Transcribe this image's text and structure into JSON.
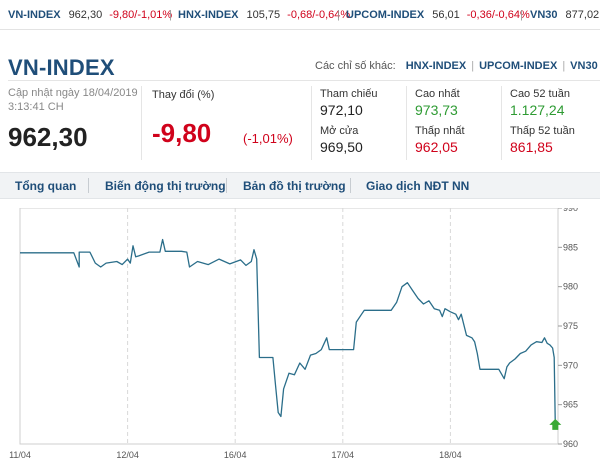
{
  "ticker": [
    {
      "name": "VN-INDEX",
      "value": "962,30",
      "change": "-9,80/-1,01%"
    },
    {
      "name": "HNX-INDEX",
      "value": "105,75",
      "change": "-0,68/-0,64%"
    },
    {
      "name": "UPCOM-INDEX",
      "value": "56,01",
      "change": "-0,36/-0,64%"
    },
    {
      "name": "VN30",
      "value": "877,02",
      "change": ""
    }
  ],
  "header": {
    "title": "VN-INDEX",
    "other_label": "Các chỉ số khác:",
    "other_links": [
      "HNX-INDEX",
      "UPCOM-INDEX",
      "VN30"
    ]
  },
  "summary": {
    "updated_label": "Cập nhật ngày 18/04/2019",
    "updated_time": "3:13:41 CH",
    "price": "962,30",
    "change_label": "Thay đổi (%)",
    "change_value": "-9,80",
    "change_pct": "(-1,01%)"
  },
  "stats": {
    "ref_label": "Tham chiếu",
    "ref_value": "972,10",
    "high_label": "Cao nhất",
    "high_value": "973,73",
    "high52_label": "Cao 52 tuần",
    "high52_value": "1.127,24",
    "open_label": "Mở cửa",
    "open_value": "969,50",
    "low_label": "Thấp nhất",
    "low_value": "962,05",
    "low52_label": "Thấp 52 tuần",
    "low52_value": "861,85"
  },
  "tabs": [
    "Tổng quan",
    "Biến động thị trường",
    "Bản đồ thị trường",
    "Giao dịch NĐT NN"
  ],
  "colors": {
    "brand": "#1f4e79",
    "down": "#d0021b",
    "up": "#2e9b33",
    "line": "#2b6e8a",
    "arrow": "#3aa935"
  },
  "chart_data": {
    "type": "line",
    "x_ticks": [
      "11/04",
      "12/04",
      "16/04",
      "17/04",
      "18/04"
    ],
    "y_ticks": [
      960,
      965,
      970,
      975,
      980,
      985,
      990
    ],
    "ylim": [
      960,
      990
    ],
    "grid": true,
    "series": [
      {
        "values": [
          [
            0.0,
            984.3
          ],
          [
            0.1,
            984.3
          ],
          [
            0.11,
            982.5
          ],
          [
            0.11,
            984.4
          ],
          [
            0.13,
            984.4
          ],
          [
            0.14,
            983.0
          ],
          [
            0.15,
            982.5
          ],
          [
            0.16,
            983.0
          ],
          [
            0.18,
            983.2
          ],
          [
            0.19,
            982.8
          ],
          [
            0.2,
            983.5
          ],
          [
            0.205,
            983.0
          ],
          [
            0.21,
            985.2
          ],
          [
            0.215,
            983.8
          ],
          [
            0.22,
            983.9
          ],
          [
            0.24,
            984.4
          ],
          [
            0.26,
            984.4
          ],
          [
            0.265,
            986.0
          ],
          [
            0.27,
            984.5
          ],
          [
            0.3,
            984.5
          ],
          [
            0.31,
            984.4
          ],
          [
            0.315,
            982.5
          ],
          [
            0.33,
            983.2
          ],
          [
            0.35,
            982.8
          ],
          [
            0.37,
            983.5
          ],
          [
            0.39,
            982.9
          ],
          [
            0.41,
            983.4
          ],
          [
            0.42,
            982.7
          ],
          [
            0.43,
            983.2
          ],
          [
            0.435,
            984.7
          ],
          [
            0.44,
            983.5
          ],
          [
            0.445,
            971.0
          ],
          [
            0.46,
            971.0
          ],
          [
            0.47,
            971.0
          ],
          [
            0.475,
            967.5
          ],
          [
            0.48,
            964.0
          ],
          [
            0.485,
            963.5
          ],
          [
            0.49,
            967.0
          ],
          [
            0.5,
            969.0
          ],
          [
            0.51,
            968.8
          ],
          [
            0.52,
            970.3
          ],
          [
            0.53,
            969.5
          ],
          [
            0.54,
            971.3
          ],
          [
            0.55,
            971.5
          ],
          [
            0.56,
            972.0
          ],
          [
            0.57,
            973.5
          ],
          [
            0.575,
            972.0
          ],
          [
            0.58,
            972.0
          ],
          [
            0.6,
            972.0
          ],
          [
            0.62,
            972.0
          ],
          [
            0.625,
            975.5
          ],
          [
            0.635,
            976.5
          ],
          [
            0.64,
            977.0
          ],
          [
            0.66,
            977.0
          ],
          [
            0.68,
            977.0
          ],
          [
            0.69,
            977.0
          ],
          [
            0.7,
            978.0
          ],
          [
            0.71,
            980.0
          ],
          [
            0.72,
            980.5
          ],
          [
            0.73,
            979.5
          ],
          [
            0.74,
            978.5
          ],
          [
            0.75,
            977.8
          ],
          [
            0.76,
            978.2
          ],
          [
            0.77,
            977.2
          ],
          [
            0.78,
            977.0
          ],
          [
            0.785,
            976.2
          ],
          [
            0.79,
            977.2
          ],
          [
            0.8,
            976.8
          ],
          [
            0.81,
            976.5
          ],
          [
            0.815,
            975.8
          ],
          [
            0.82,
            976.5
          ],
          [
            0.83,
            973.8
          ],
          [
            0.84,
            973.5
          ],
          [
            0.845,
            973.0
          ],
          [
            0.85,
            971.5
          ],
          [
            0.855,
            969.5
          ],
          [
            0.87,
            969.5
          ],
          [
            0.89,
            969.5
          ],
          [
            0.9,
            968.3
          ],
          [
            0.905,
            969.8
          ],
          [
            0.91,
            970.3
          ],
          [
            0.92,
            970.8
          ],
          [
            0.93,
            971.5
          ],
          [
            0.94,
            971.8
          ],
          [
            0.95,
            972.6
          ],
          [
            0.96,
            973.0
          ],
          [
            0.97,
            972.9
          ],
          [
            0.975,
            973.5
          ],
          [
            0.98,
            972.8
          ],
          [
            0.985,
            972.6
          ],
          [
            0.99,
            972.2
          ],
          [
            0.993,
            971.0
          ],
          [
            0.995,
            962.3
          ]
        ]
      }
    ]
  }
}
